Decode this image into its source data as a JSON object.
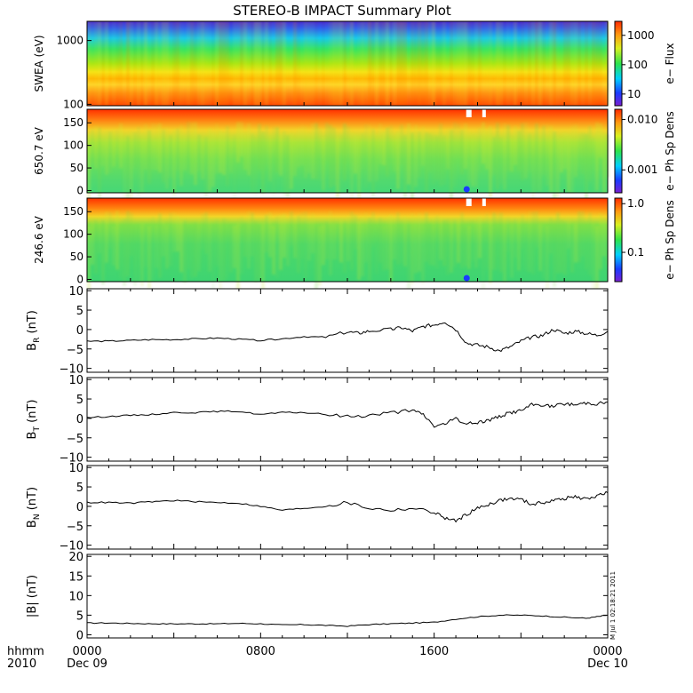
{
  "title": "STEREO-B IMPACT Summary Plot",
  "time_axis": {
    "row1_label": "hhmm",
    "row2_label": "2010",
    "ticks": [
      {
        "time": "0000",
        "date": "Dec 09",
        "hour": 0
      },
      {
        "time": "0800",
        "date": "",
        "hour": 8
      },
      {
        "time": "1600",
        "date": "",
        "hour": 16
      },
      {
        "time": "0000",
        "date": "Dec 10",
        "hour": 24
      }
    ],
    "range_hours": [
      0,
      24
    ]
  },
  "stamp": "M Jul 1 02:18:21 2011",
  "colors": {
    "trace": "#000000",
    "background": "#ffffff"
  },
  "chart_data": [
    {
      "type": "heatmap",
      "panel": "swea",
      "ylabel": "SWEA (eV)",
      "yscale": "log",
      "ylim": [
        95,
        2000
      ],
      "yticks": [
        "1000",
        "100"
      ],
      "colorbar": {
        "label": "e− Flux",
        "scale": "log",
        "range": [
          4,
          3000
        ],
        "ticks": [
          "1000",
          "100",
          "10"
        ]
      },
      "description_values": {
        "low_energy_flux_peak": 2000,
        "high_energy_flux": 3
      }
    },
    {
      "type": "heatmap",
      "panel": "pad650",
      "ylabel": "650.7 eV",
      "ylim": [
        -5,
        180
      ],
      "yticks": [
        "150",
        "100",
        "50",
        "0"
      ],
      "colorbar": {
        "label": "e− Ph Sp Dens",
        "scale": "log",
        "range": [
          0.00035,
          0.016
        ],
        "ticks": [
          "0.010",
          "0.001"
        ]
      }
    },
    {
      "type": "heatmap",
      "panel": "pad246",
      "ylabel": "246.6 eV",
      "ylim": [
        -5,
        180
      ],
      "yticks": [
        "150",
        "100",
        "50",
        "0"
      ],
      "colorbar": {
        "label": "e− Ph Sp Dens",
        "scale": "log",
        "range": [
          0.025,
          1.3
        ],
        "ticks": [
          "1.0",
          "0.1"
        ]
      }
    },
    {
      "type": "line",
      "panel": "br",
      "ylabel_main": "B",
      "ylabel_sub": "R",
      "ylabel_unit": "(nT)",
      "ylim": [
        -11,
        10.5
      ],
      "yticks": [
        "10",
        "5",
        "0",
        "−5",
        "−10"
      ],
      "x": [
        0,
        1,
        2,
        3,
        4,
        5,
        6,
        7,
        8,
        9,
        10,
        11,
        12,
        12.5,
        13,
        14,
        14.5,
        15,
        15.5,
        16,
        16.5,
        17,
        17.5,
        18,
        18.5,
        19,
        19.5,
        20,
        20.5,
        21,
        21.5,
        22,
        22.5,
        23,
        23.5,
        24
      ],
      "values": [
        -3,
        -3,
        -2.8,
        -2.6,
        -2.6,
        -2.4,
        -2.2,
        -2.5,
        -2.8,
        -2.4,
        -1.8,
        -2,
        -0.6,
        -1,
        -0.4,
        0,
        0.5,
        -0.4,
        0.8,
        1.2,
        2,
        0,
        -3.5,
        -4,
        -4.5,
        -5.5,
        -4.5,
        -3,
        -2,
        -1.5,
        0,
        -1,
        -0.5,
        -1,
        -1.5,
        -0.5
      ]
    },
    {
      "type": "line",
      "panel": "bt",
      "ylabel_main": "B",
      "ylabel_sub": "T",
      "ylabel_unit": "(nT)",
      "ylim": [
        -11,
        10.5
      ],
      "yticks": [
        "10",
        "5",
        "0",
        "−5",
        "−10"
      ],
      "x": [
        0,
        1,
        2,
        3,
        4,
        5,
        6,
        7,
        8,
        9,
        10,
        11,
        12,
        13,
        14,
        15,
        15.5,
        16,
        16.5,
        17,
        17.5,
        18,
        18.5,
        19,
        19.5,
        20,
        20.5,
        21,
        21.5,
        22,
        22.5,
        23,
        23.5,
        24
      ],
      "values": [
        0.2,
        0.5,
        0.8,
        1,
        1.5,
        1.5,
        1.8,
        1.8,
        1,
        1.5,
        1.5,
        1,
        0.5,
        0.8,
        1.5,
        2,
        1,
        -2,
        -1.5,
        0,
        -1.5,
        -1,
        -0.5,
        0.5,
        1.5,
        2,
        3.5,
        3.5,
        3,
        3.8,
        3.5,
        4,
        3.8,
        4.2
      ]
    },
    {
      "type": "line",
      "panel": "bn",
      "ylabel_main": "B",
      "ylabel_sub": "N",
      "ylabel_unit": "(nT)",
      "ylim": [
        -11,
        10.5
      ],
      "yticks": [
        "10",
        "5",
        "0",
        "−5",
        "−10"
      ],
      "x": [
        0,
        1,
        2,
        3,
        4,
        5,
        6,
        7,
        8,
        9,
        10,
        11,
        12,
        13,
        14,
        15,
        16,
        16.5,
        17,
        17.5,
        18,
        18.5,
        19,
        19.5,
        20,
        20.5,
        21,
        21.5,
        22,
        22.5,
        23,
        23.5,
        24
      ],
      "values": [
        1,
        1,
        0.8,
        1.2,
        1.5,
        1.2,
        1,
        0.8,
        0,
        -1,
        -0.5,
        0,
        1,
        -0.5,
        -1,
        -0.5,
        -1.5,
        -3,
        -3.8,
        -2,
        -0.5,
        0.5,
        1.5,
        2,
        1.8,
        0.5,
        1,
        1.5,
        2,
        2.5,
        1.8,
        2.8,
        3.5
      ]
    },
    {
      "type": "line",
      "panel": "bmag",
      "ylabel_main": "|B| (nT)",
      "ylim": [
        -0.8,
        20.5
      ],
      "yticks": [
        "20",
        "15",
        "10",
        "5",
        "0"
      ],
      "x": [
        0,
        1,
        2,
        3,
        4,
        5,
        6,
        7,
        8,
        9,
        10,
        11,
        12,
        13,
        14,
        15,
        16,
        17,
        18,
        19,
        20,
        21,
        22,
        23,
        23.5,
        24
      ],
      "values": [
        3,
        3,
        2.9,
        2.8,
        2.8,
        2.8,
        2.8,
        2.9,
        2.8,
        2.5,
        2.6,
        2.4,
        2.2,
        2.6,
        2.8,
        3,
        3.2,
        4,
        4.6,
        5,
        5,
        4.8,
        4.5,
        4.2,
        4.6,
        5
      ]
    }
  ]
}
